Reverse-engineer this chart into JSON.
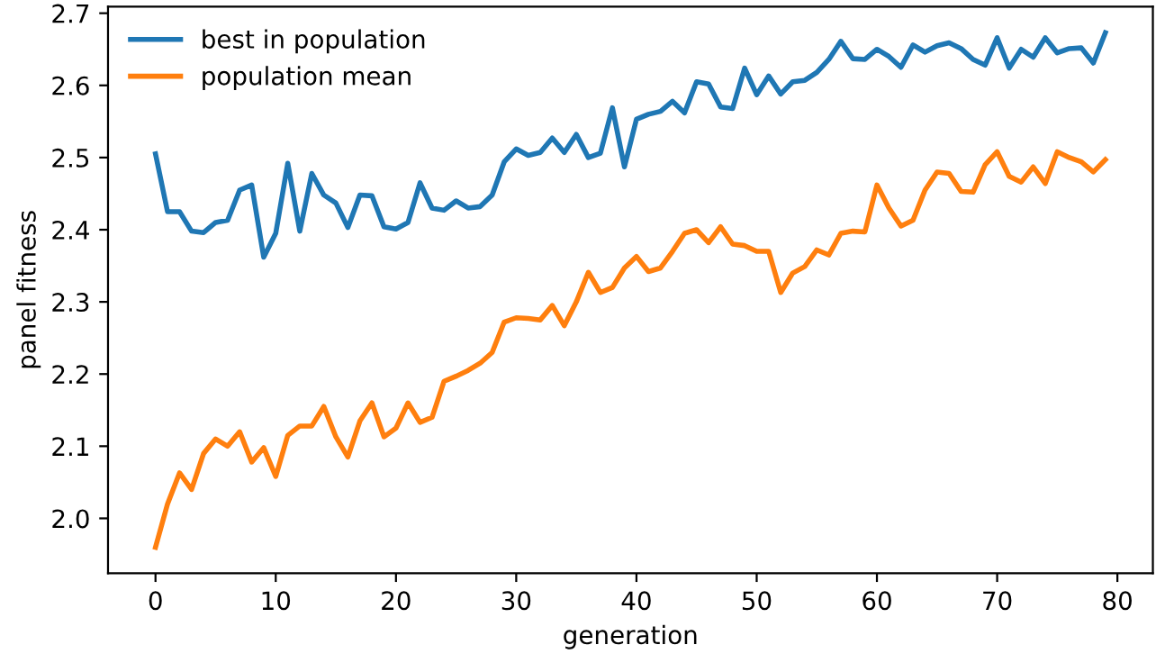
{
  "chart_data": {
    "type": "line",
    "xlabel": "generation",
    "ylabel": "panel fitness",
    "x": [
      0,
      1,
      2,
      3,
      4,
      5,
      6,
      7,
      8,
      9,
      10,
      11,
      12,
      13,
      14,
      15,
      16,
      17,
      18,
      19,
      20,
      21,
      22,
      23,
      24,
      25,
      26,
      27,
      28,
      29,
      30,
      31,
      32,
      33,
      34,
      35,
      36,
      37,
      38,
      39,
      40,
      41,
      42,
      43,
      44,
      45,
      46,
      47,
      48,
      49,
      50,
      51,
      52,
      53,
      54,
      55,
      56,
      57,
      58,
      59,
      60,
      61,
      62,
      63,
      64,
      65,
      66,
      67,
      68,
      69,
      70,
      71,
      72,
      73,
      74,
      75,
      76,
      77,
      78,
      79
    ],
    "series": [
      {
        "name": "best in population",
        "color": "#1f77b4",
        "values": [
          2.505,
          2.425,
          2.425,
          2.398,
          2.396,
          2.41,
          2.413,
          2.455,
          2.462,
          2.362,
          2.395,
          2.492,
          2.398,
          2.478,
          2.448,
          2.437,
          2.403,
          2.448,
          2.447,
          2.404,
          2.401,
          2.41,
          2.465,
          2.43,
          2.427,
          2.44,
          2.43,
          2.432,
          2.448,
          2.494,
          2.512,
          2.503,
          2.507,
          2.527,
          2.507,
          2.532,
          2.5,
          2.506,
          2.569,
          2.487,
          2.553,
          2.56,
          2.564,
          2.578,
          2.562,
          2.605,
          2.602,
          2.57,
          2.568,
          2.624,
          2.587,
          2.613,
          2.588,
          2.605,
          2.607,
          2.618,
          2.636,
          2.661,
          2.637,
          2.636,
          2.65,
          2.64,
          2.625,
          2.656,
          2.646,
          2.655,
          2.659,
          2.651,
          2.636,
          2.628,
          2.666,
          2.624,
          2.65,
          2.639,
          2.666,
          2.645,
          2.651,
          2.652,
          2.631,
          2.673
        ]
      },
      {
        "name": "population mean",
        "color": "#ff7f0e",
        "values": [
          1.96,
          2.02,
          2.063,
          2.04,
          2.09,
          2.11,
          2.1,
          2.12,
          2.078,
          2.098,
          2.058,
          2.115,
          2.128,
          2.128,
          2.155,
          2.113,
          2.085,
          2.135,
          2.16,
          2.113,
          2.125,
          2.16,
          2.133,
          2.14,
          2.19,
          2.197,
          2.205,
          2.215,
          2.23,
          2.272,
          2.278,
          2.277,
          2.275,
          2.295,
          2.267,
          2.3,
          2.341,
          2.313,
          2.32,
          2.347,
          2.363,
          2.342,
          2.347,
          2.37,
          2.395,
          2.4,
          2.382,
          2.404,
          2.38,
          2.378,
          2.37,
          2.37,
          2.313,
          2.34,
          2.349,
          2.372,
          2.365,
          2.395,
          2.398,
          2.397,
          2.462,
          2.43,
          2.405,
          2.413,
          2.455,
          2.48,
          2.478,
          2.453,
          2.452,
          2.49,
          2.508,
          2.474,
          2.466,
          2.487,
          2.464,
          2.508,
          2.5,
          2.494,
          2.48,
          2.497
        ]
      }
    ],
    "xlim": [
      -3.95,
      82.95
    ],
    "xticks": [
      0,
      10,
      20,
      30,
      40,
      50,
      60,
      70,
      80
    ],
    "ylim": [
      1.924,
      2.709
    ],
    "yticks": [
      {
        "value": 2.0,
        "label": "2.0"
      },
      {
        "value": 2.1,
        "label": "2.1"
      },
      {
        "value": 2.2,
        "label": "2.2"
      },
      {
        "value": 2.3,
        "label": "2.3"
      },
      {
        "value": 2.4,
        "label": "2.4"
      },
      {
        "value": 2.5,
        "label": "2.5"
      },
      {
        "value": 2.6,
        "label": "2.6"
      },
      {
        "value": 2.7,
        "label": "2.7"
      }
    ],
    "legend": "top left",
    "grid": false,
    "marker": "none",
    "line_style": "solid"
  }
}
